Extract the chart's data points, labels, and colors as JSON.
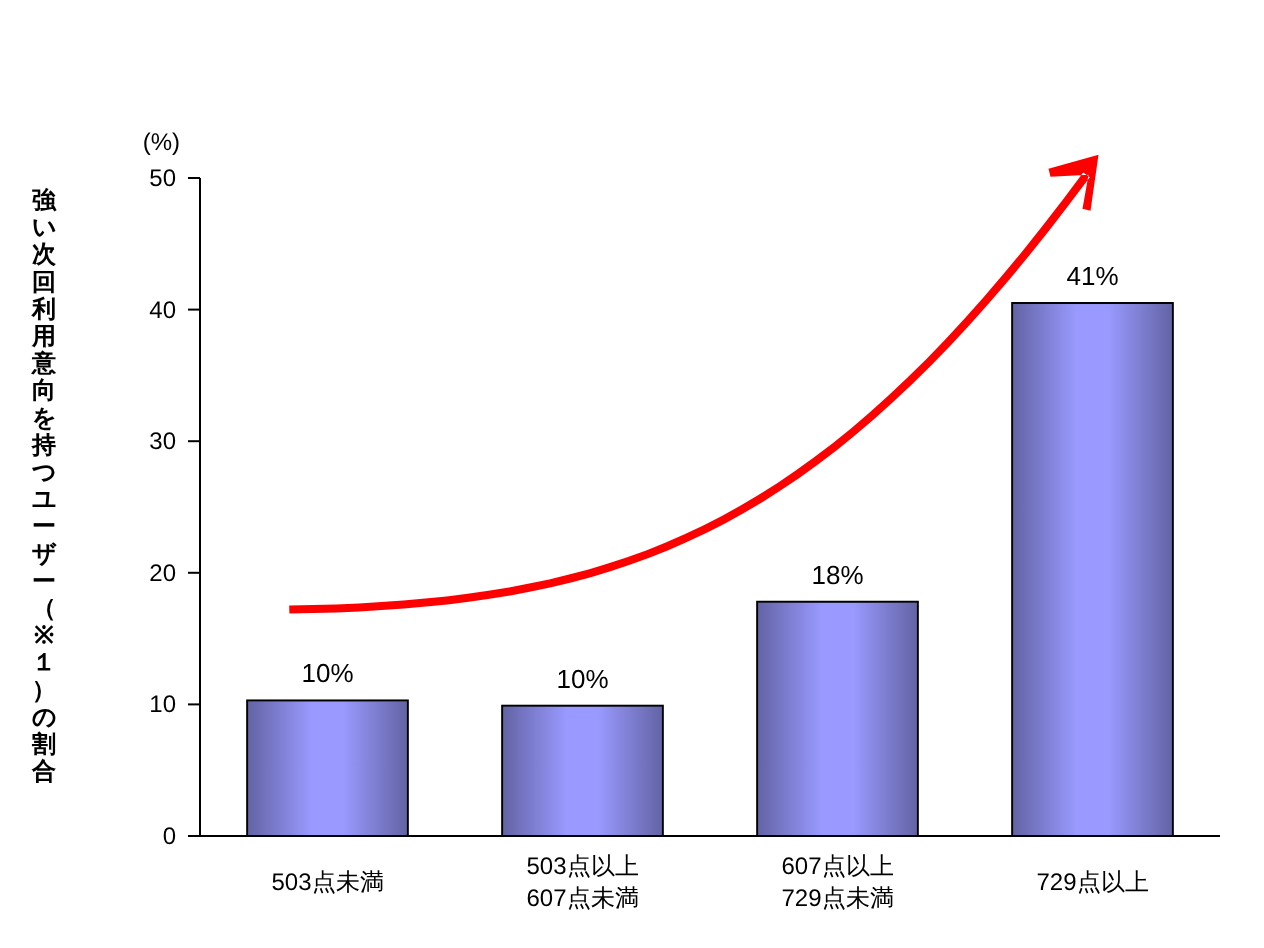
{
  "chart_data": {
    "type": "bar",
    "ylabel": "強い次回利用意向を持つユーザー（※１）の割合",
    "annotations": [
      "(%)"
    ],
    "categories": [
      "503点未満",
      "503点以上\n607点未満",
      "607点以上\n729点未満",
      "729点以上"
    ],
    "values": [
      10.3,
      9.9,
      17.8,
      40.5
    ],
    "value_labels": [
      "10%",
      "10%",
      "18%",
      "41%"
    ],
    "color": "#9999ff",
    "ylim": [
      0,
      50
    ],
    "yticks": [
      0,
      10,
      20,
      30,
      40,
      50
    ],
    "grid": false
  }
}
